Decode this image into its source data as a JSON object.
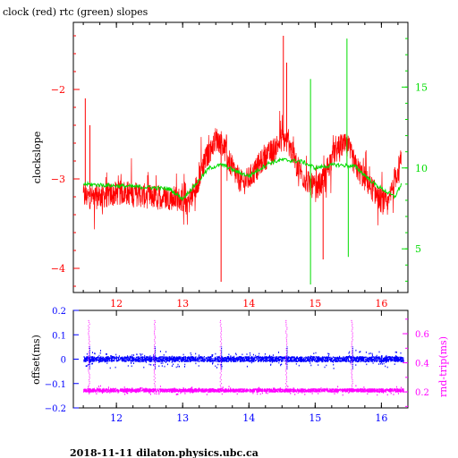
{
  "title": "clock (red) rtc (green) slopes",
  "footer": "2018-11-11 dilaton.physics.ubc.ca",
  "colors": {
    "red": "#ff0000",
    "green": "#00dd00",
    "blue": "#0000ff",
    "magenta": "#ff00ff",
    "black": "#000000"
  },
  "chart_data": [
    {
      "type": "line",
      "ylabel_left": "clockslope",
      "xlim": [
        11.35,
        16.4
      ],
      "ylim_left": [
        -4.27,
        -1.25
      ],
      "ylim_right": [
        2.3,
        19.0
      ],
      "x_ticks": [
        "12",
        "13",
        "14",
        "15",
        "16"
      ],
      "y_ticks_left": [
        "-2",
        "-3",
        "-4"
      ],
      "y_ticks_right": [
        "15",
        "10",
        "5"
      ],
      "series": [
        {
          "axis": "left",
          "x": [
            11.5,
            11.7,
            11.9,
            12.1,
            12.3,
            12.5,
            12.7,
            12.9,
            13.1,
            13.2,
            13.3,
            13.4,
            13.5,
            13.6,
            13.7,
            13.8,
            13.9,
            14.0,
            14.2,
            14.4,
            14.5,
            14.6,
            14.7,
            14.8,
            14.9,
            15.0,
            15.1,
            15.2,
            15.3,
            15.4,
            15.5,
            15.6,
            15.7,
            15.8,
            15.9,
            16.0,
            16.1,
            16.2,
            16.3
          ],
          "values": [
            -3.2,
            -3.2,
            -3.18,
            -3.15,
            -3.17,
            -3.2,
            -3.2,
            -3.22,
            -3.25,
            -3.1,
            -2.85,
            -2.7,
            -2.55,
            -2.6,
            -2.8,
            -2.95,
            -3.05,
            -3.0,
            -2.8,
            -2.65,
            -2.55,
            -2.6,
            -2.8,
            -2.95,
            -3.05,
            -3.1,
            -3.05,
            -2.85,
            -2.7,
            -2.62,
            -2.65,
            -2.85,
            -2.95,
            -3.05,
            -3.15,
            -3.25,
            -3.3,
            -3.0,
            -2.8
          ],
          "spikes": [
            [
              11.53,
              -2.1
            ],
            [
              11.6,
              -2.4
            ],
            [
              13.58,
              -4.15
            ],
            [
              14.52,
              -1.4
            ],
            [
              14.57,
              -1.7
            ],
            [
              15.12,
              -3.9
            ],
            [
              15.5,
              -2.6
            ]
          ]
        },
        {
          "axis": "right",
          "x": [
            11.5,
            12.0,
            12.5,
            12.8,
            13.0,
            13.2,
            13.4,
            13.6,
            13.8,
            14.0,
            14.3,
            14.5,
            14.8,
            15.0,
            15.3,
            15.6,
            15.9,
            16.2,
            16.3
          ],
          "values": [
            9.0,
            8.9,
            8.8,
            8.7,
            8.1,
            9.0,
            10.0,
            10.2,
            9.8,
            9.5,
            10.3,
            10.5,
            10.4,
            10.0,
            10.2,
            10.1,
            9.0,
            8.2,
            9.0
          ],
          "spikes": [
            [
              14.93,
              15.5
            ],
            [
              14.93,
              2.8
            ],
            [
              15.48,
              18.0
            ],
            [
              15.5,
              4.5
            ]
          ]
        }
      ]
    },
    {
      "type": "scatter",
      "ylabel_left": "offset(ms)",
      "ylabel_right": "rnd-trip(ms)",
      "xlim": [
        11.35,
        16.4
      ],
      "ylim_left": [
        -0.2,
        0.2
      ],
      "ylim_right": [
        0.09,
        0.76
      ],
      "x_ticks": [
        "12",
        "13",
        "14",
        "15",
        "16"
      ],
      "y_ticks_left": [
        "0.2",
        "0.1",
        "0",
        "-0.1",
        "-0.2"
      ],
      "y_ticks_right": [
        "0.6",
        "0.4",
        "0.2"
      ],
      "series": [
        {
          "axis": "left",
          "band_center": 0.0,
          "band_halfwidth": 0.01,
          "x_range": [
            11.5,
            16.33
          ]
        },
        {
          "axis": "right",
          "band_center": 0.21,
          "band_halfwidth": 0.01,
          "x_range": [
            11.5,
            16.33
          ]
        }
      ],
      "rnd_trip_peaks": [
        11.58,
        12.57,
        13.57,
        14.56,
        15.55
      ],
      "rnd_trip_peak_height": 0.7
    }
  ]
}
